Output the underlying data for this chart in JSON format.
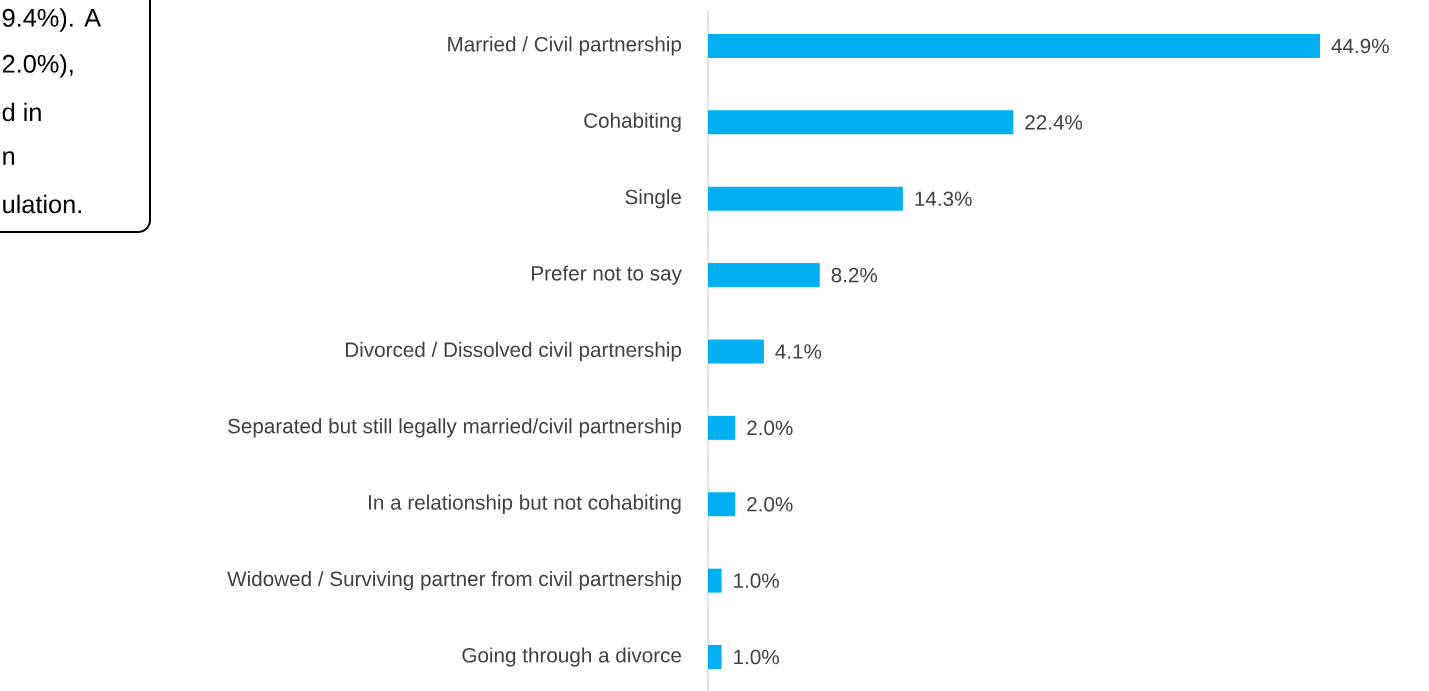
{
  "chart_data": {
    "type": "bar",
    "orientation": "horizontal",
    "color": "#00b0f0",
    "categories": [
      "Married / Civil partnership",
      "Cohabiting",
      "Single",
      "Prefer not to say",
      "Divorced / Dissolved civil partnership",
      "Separated but still legally married/civil partnership",
      "In a relationship but not cohabiting",
      "Widowed / Surviving partner from civil partnership",
      "Going through a divorce"
    ],
    "values": [
      44.9,
      22.4,
      14.3,
      8.2,
      4.1,
      2.0,
      2.0,
      1.0,
      1.0
    ],
    "value_labels": [
      "44.9%",
      "22.4%",
      "14.3%",
      "8.2%",
      "4.1%",
      "2.0%",
      "2.0%",
      "1.0%",
      "1.0%"
    ],
    "annotations": [
      "9.4%). A",
      "2.0%),",
      "d in",
      "n",
      "ulation."
    ]
  }
}
